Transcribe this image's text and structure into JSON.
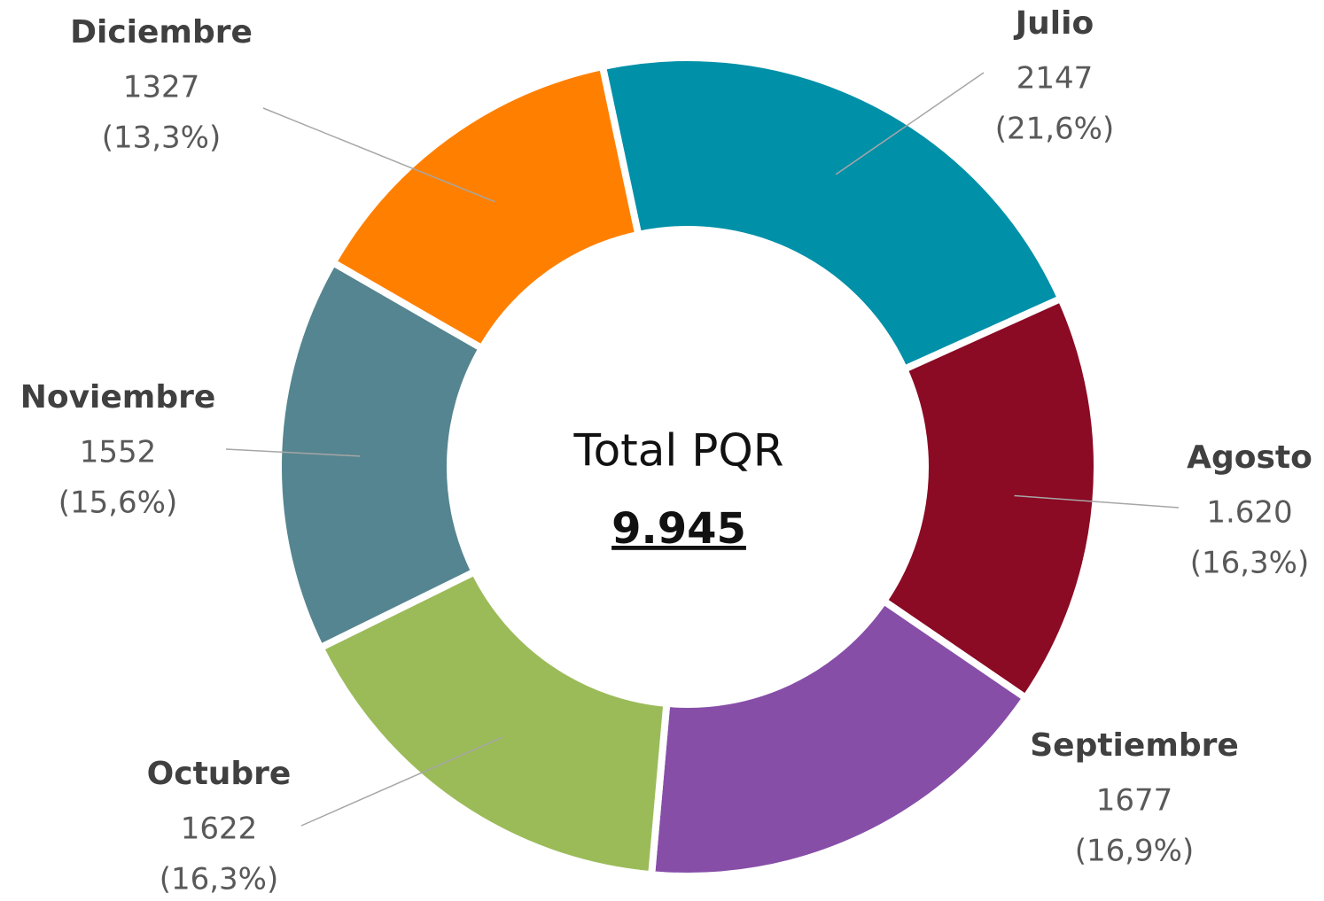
{
  "chart_data": {
    "type": "donut",
    "categories": [
      "Julio",
      "Agosto",
      "Septiembre",
      "Octubre",
      "Noviembre",
      "Diciembre"
    ],
    "values": [
      2147,
      1620,
      1677,
      1622,
      1552,
      1327
    ],
    "value_labels": [
      "2147",
      "1.620",
      "1677",
      "1622",
      "1552",
      "1327"
    ],
    "percent_labels": [
      "(21,6%)",
      "(16,3%)",
      "(16,9%)",
      "(16,3%)",
      "(15,6%)",
      "(13,3%)"
    ],
    "colors": [
      "#0090a8",
      "#8b0a24",
      "#874ea8",
      "#9bbb59",
      "#558590",
      "#ff8000"
    ],
    "center_title": "Total PQR",
    "center_value": "9.945"
  }
}
